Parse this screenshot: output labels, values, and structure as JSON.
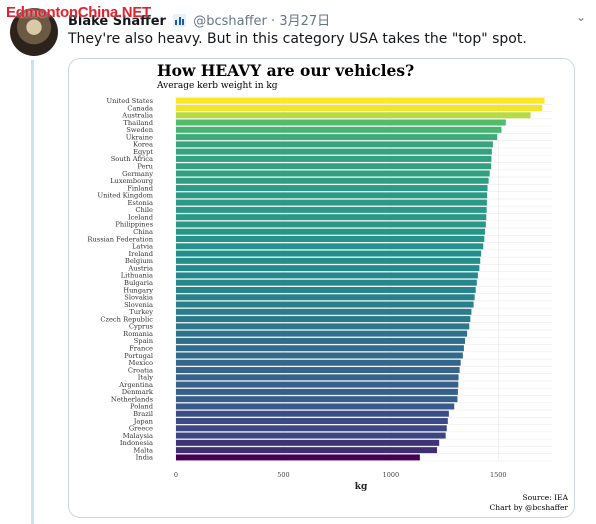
{
  "watermark": "EdmontonChina.NET",
  "tweet": {
    "author_name": "Blake Shaffer",
    "handle": "@bcshaffer",
    "separator": "·",
    "date": "3月27日",
    "text": "They're also heavy. But in this category USA takes the \"top\" spot.",
    "caret": "⌄"
  },
  "chart_data": {
    "type": "bar",
    "orientation": "horizontal",
    "title": "How HEAVY are our vehicles?",
    "subtitle": "Average kerb weight in kg",
    "xlabel": "kg",
    "ylabel": "",
    "xlim": [
      0,
      1750
    ],
    "xticks": [
      0,
      500,
      1000,
      1500
    ],
    "grid": true,
    "colormap": "viridis",
    "source": "Source: IEA",
    "credit": "Chart by @bcshaffer",
    "categories": [
      "United States",
      "Canada",
      "Australia",
      "Thailand",
      "Sweden",
      "Ukraine",
      "Korea",
      "Egypt",
      "South Africa",
      "Peru",
      "Germany",
      "Luxembourg",
      "Finland",
      "United Kingdom",
      "Estonia",
      "Chile",
      "Iceland",
      "Philippines",
      "China",
      "Russian Federation",
      "Latvia",
      "Ireland",
      "Belgium",
      "Austria",
      "Lithuania",
      "Bulgaria",
      "Hungary",
      "Slovakia",
      "Slovenia",
      "Turkey",
      "Czech Republic",
      "Cyprus",
      "Romania",
      "Spain",
      "France",
      "Portugal",
      "Mexico",
      "Croatia",
      "Italy",
      "Argentina",
      "Denmark",
      "Netherlands",
      "Poland",
      "Brazil",
      "Japan",
      "Greece",
      "Malaysia",
      "Indonesia",
      "Malta",
      "India"
    ],
    "values": [
      1715,
      1705,
      1650,
      1535,
      1515,
      1495,
      1475,
      1470,
      1468,
      1467,
      1460,
      1455,
      1450,
      1448,
      1447,
      1446,
      1444,
      1442,
      1438,
      1435,
      1430,
      1420,
      1416,
      1412,
      1405,
      1400,
      1395,
      1390,
      1385,
      1375,
      1370,
      1365,
      1355,
      1345,
      1340,
      1335,
      1325,
      1320,
      1315,
      1314,
      1312,
      1310,
      1295,
      1270,
      1265,
      1260,
      1255,
      1225,
      1215,
      1135
    ]
  }
}
